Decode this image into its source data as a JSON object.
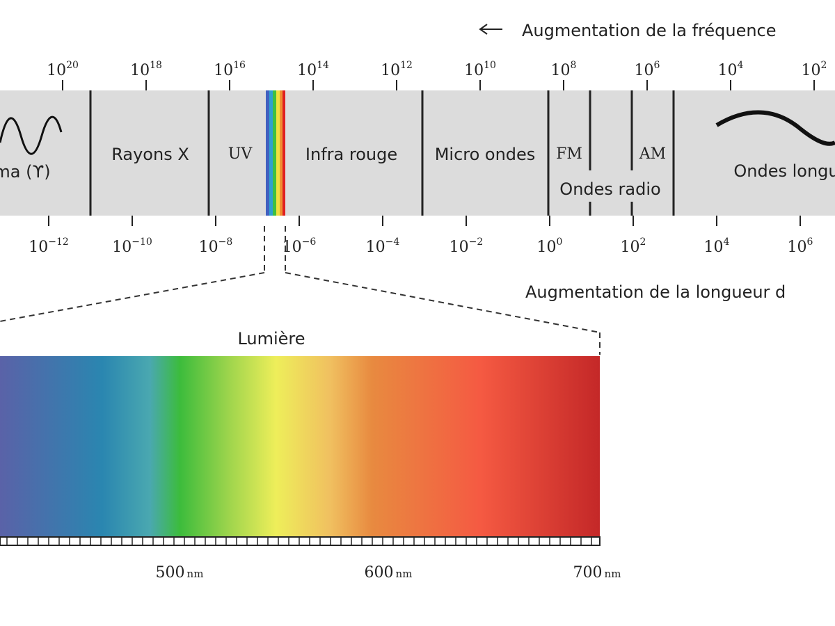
{
  "header": {
    "frequency_label": "Augmentation de la fréquence",
    "wavelength_label": "Augmentation de la longueur d"
  },
  "frequency_ticks": [
    {
      "base": "10",
      "exp": "20"
    },
    {
      "base": "10",
      "exp": "18"
    },
    {
      "base": "10",
      "exp": "16"
    },
    {
      "base": "10",
      "exp": "14"
    },
    {
      "base": "10",
      "exp": "12"
    },
    {
      "base": "10",
      "exp": "10"
    },
    {
      "base": "10",
      "exp": "8"
    },
    {
      "base": "10",
      "exp": "6"
    },
    {
      "base": "10",
      "exp": "4"
    },
    {
      "base": "10",
      "exp": "2"
    }
  ],
  "wavelength_ticks": [
    {
      "base": "10",
      "exp": "−12"
    },
    {
      "base": "10",
      "exp": "−10"
    },
    {
      "base": "10",
      "exp": "−8"
    },
    {
      "base": "10",
      "exp": "−6"
    },
    {
      "base": "10",
      "exp": "−4"
    },
    {
      "base": "10",
      "exp": "−2"
    },
    {
      "base": "10",
      "exp": "0"
    },
    {
      "base": "10",
      "exp": "2"
    },
    {
      "base": "10",
      "exp": "4"
    },
    {
      "base": "10",
      "exp": "6"
    }
  ],
  "regions": {
    "gamma": "ma (ϒ)",
    "xray": "Rayons X",
    "uv": "UV",
    "infrared": "Infra rouge",
    "microwave": "Micro ondes",
    "fm": "FM",
    "am": "AM",
    "radio": "Ondes radio",
    "long": "Ondes longu"
  },
  "visible": {
    "label": "Lumière",
    "ticks": [
      {
        "value": "500",
        "unit": "nm"
      },
      {
        "value": "600",
        "unit": "nm"
      },
      {
        "value": "700",
        "unit": "nm"
      }
    ]
  }
}
